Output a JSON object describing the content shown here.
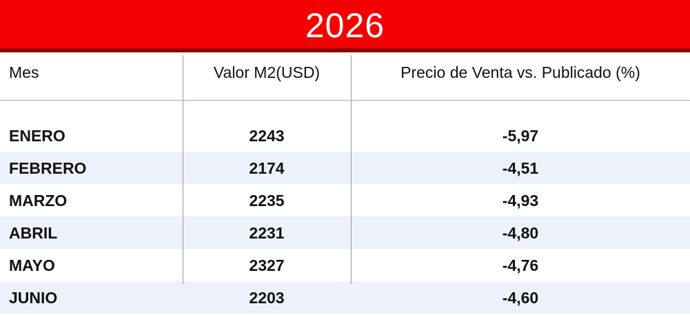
{
  "header": {
    "title": "2026"
  },
  "table": {
    "columns": [
      "Mes",
      "Valor M2(USD)",
      "Precio de Venta vs. Publicado (%)"
    ],
    "rows": [
      [
        "ENERO",
        "2243",
        "-5,97"
      ],
      [
        "FEBRERO",
        "2174",
        "-4,51"
      ],
      [
        "MARZO",
        "2235",
        "-4,93"
      ],
      [
        "ABRIL",
        "2231",
        "-4,80"
      ],
      [
        "MAYO",
        "2327",
        "-4,76"
      ],
      [
        "JUNIO",
        "2203",
        "-4,60"
      ]
    ]
  }
}
